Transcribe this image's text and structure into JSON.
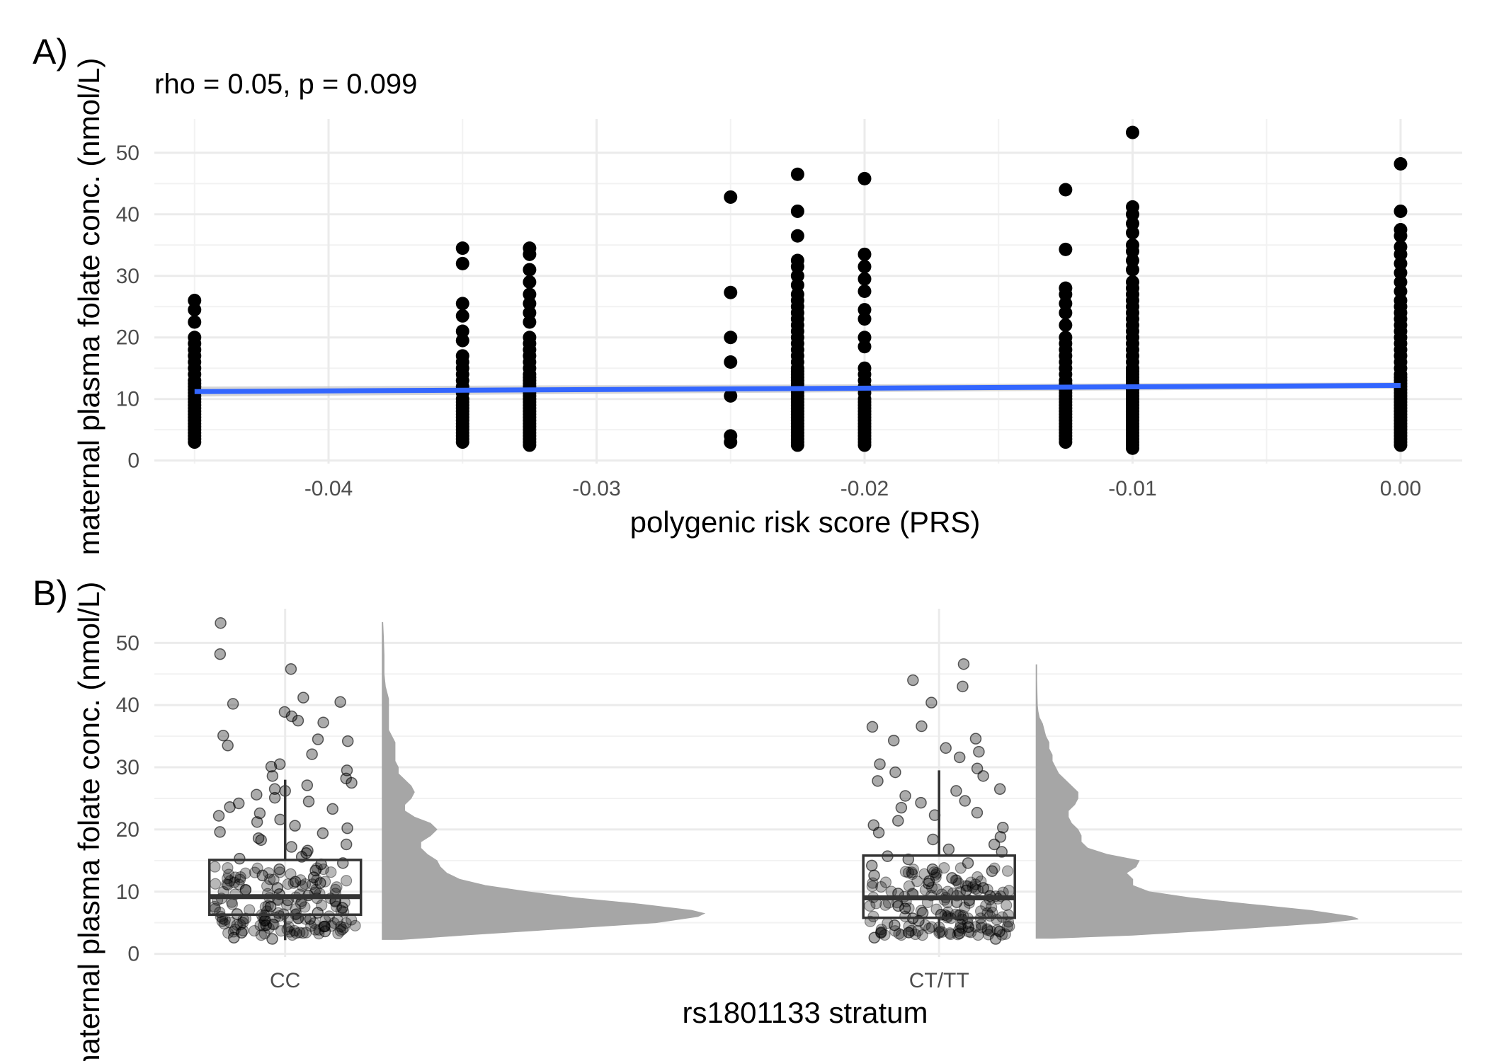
{
  "chart_data": [
    {
      "type": "scatter",
      "tag": "A)",
      "title": "",
      "subtitle": "rho = 0.05, p = 0.099",
      "xlabel": "polygenic risk score (PRS)",
      "ylabel": "maternal plasma folate conc. (nmol/L)",
      "xlim": [
        -0.0465,
        0.0023
      ],
      "ylim": [
        -0.5,
        55.5
      ],
      "x_ticks": [
        -0.04,
        -0.03,
        -0.02,
        -0.01,
        0.0
      ],
      "x_tick_labels": [
        "-0.04",
        "-0.03",
        "-0.02",
        "-0.01",
        "0.00"
      ],
      "y_ticks": [
        0,
        10,
        20,
        30,
        40,
        50
      ],
      "y_tick_labels": [
        "0",
        "10",
        "20",
        "30",
        "40",
        "50"
      ],
      "grid": true,
      "point_color": "#000000",
      "columns": [
        {
          "x": -0.045,
          "values": [
            3,
            3.5,
            4,
            4.5,
            5,
            5.5,
            6,
            6.5,
            7,
            7.5,
            8,
            8.5,
            9,
            9.5,
            10,
            10.5,
            11,
            11.5,
            12,
            12.5,
            13,
            14,
            15,
            16,
            17,
            18,
            19,
            20,
            22.5,
            24.5,
            26
          ]
        },
        {
          "x": -0.035,
          "values": [
            3,
            3.5,
            4,
            4.5,
            5,
            5.5,
            6,
            6.5,
            7,
            7.5,
            8,
            8.5,
            9,
            9.5,
            10,
            11,
            12,
            13,
            14,
            15,
            16,
            17,
            19.5,
            21,
            23.5,
            25.5,
            32,
            34.5
          ]
        },
        {
          "x": -0.0325,
          "values": [
            2.5,
            3,
            3.5,
            4,
            4.5,
            5,
            5.5,
            6,
            6.5,
            7,
            7.5,
            8,
            8.5,
            9,
            9.5,
            10,
            10.5,
            11,
            11.5,
            12,
            12.5,
            13,
            13.5,
            14,
            15,
            16,
            17,
            18,
            19,
            20,
            22.5,
            24,
            25.5,
            27,
            29,
            31,
            33.5,
            34.5
          ]
        },
        {
          "x": -0.025,
          "values": [
            3,
            4,
            10.5,
            16,
            20,
            27.3,
            42.8
          ]
        },
        {
          "x": -0.0225,
          "values": [
            2.5,
            3,
            3.5,
            4,
            4.5,
            5,
            5.5,
            6,
            6.5,
            7,
            7.5,
            8,
            8.5,
            9,
            9.5,
            10,
            10.5,
            11,
            11.5,
            12,
            12.5,
            13,
            13.5,
            14,
            14.5,
            15,
            16,
            17,
            18,
            19,
            20,
            21,
            22,
            23,
            24,
            25,
            26,
            27,
            28.5,
            30,
            31.5,
            32.5,
            36.5,
            40.5,
            46.5
          ]
        },
        {
          "x": -0.02,
          "values": [
            2.5,
            3,
            3.5,
            4,
            4.5,
            5,
            5.5,
            6,
            6.5,
            7,
            7.5,
            8,
            8.5,
            9,
            9.5,
            10,
            11,
            12,
            13,
            14,
            15,
            18.5,
            20,
            23,
            24.5,
            27.5,
            29.5,
            31.5,
            33.5,
            45.8
          ]
        },
        {
          "x": -0.0125,
          "values": [
            3,
            3.5,
            4,
            4.5,
            5,
            5.5,
            6,
            6.5,
            7,
            7.5,
            8,
            8.5,
            9,
            9.5,
            10,
            10.5,
            11,
            11.5,
            12,
            12.5,
            13,
            14,
            15,
            16,
            17,
            18,
            19,
            20,
            22,
            24,
            25.5,
            27,
            28,
            34.3,
            44
          ]
        },
        {
          "x": -0.01,
          "values": [
            2,
            2.5,
            3,
            3.5,
            4,
            4.5,
            5,
            5.5,
            6,
            6.5,
            7,
            7.5,
            8,
            8.5,
            9,
            9.5,
            10,
            10.5,
            11,
            11.5,
            12,
            12.5,
            13,
            13.5,
            14,
            14.5,
            15,
            16,
            17,
            18,
            19,
            20,
            21,
            22,
            23,
            24,
            25,
            26,
            27,
            28,
            29,
            31,
            32.5,
            34,
            35,
            37,
            38.5,
            40,
            41.2,
            53.3
          ]
        },
        {
          "x": 0.0,
          "values": [
            2.5,
            3,
            3.5,
            4,
            4.5,
            5,
            5.5,
            6,
            6.5,
            7,
            7.5,
            8,
            8.5,
            9,
            9.5,
            10,
            10.5,
            11,
            11.5,
            12,
            12.5,
            13,
            13.5,
            14,
            15,
            16,
            17,
            18,
            19,
            20,
            21,
            22,
            23,
            24,
            25,
            26,
            27.5,
            29,
            30.5,
            32,
            33.5,
            34.7,
            36.5,
            37.5,
            40.5,
            48.2
          ]
        }
      ],
      "fit_line": {
        "color": "#3366FF",
        "band_color": "#c8c8c8",
        "x": [
          -0.045,
          0.0
        ],
        "y": [
          11.2,
          12.2
        ],
        "y_lower": [
          10.4,
          11.7
        ],
        "y_upper": [
          12.0,
          12.7
        ]
      }
    },
    {
      "type": "raincloud",
      "tag": "B)",
      "title": "",
      "xlabel": "rs1801133 stratum",
      "ylabel": "maternal plasma folate conc. (nmol/L)",
      "categories": [
        "CC",
        "CT/TT"
      ],
      "ylim": [
        -0.5,
        55.5
      ],
      "y_ticks": [
        0,
        10,
        20,
        30,
        40,
        50
      ],
      "y_tick_labels": [
        "0",
        "10",
        "20",
        "30",
        "40",
        "50"
      ],
      "grid": true,
      "density_color": "#a6a6a6",
      "box": [
        {
          "category": "CC",
          "whisker_low": 2.2,
          "q1": 6.3,
          "median": 9.2,
          "q3": 15.1,
          "whisker_high": 28.0
        },
        {
          "category": "CT/TT",
          "whisker_low": 2.4,
          "q1": 5.8,
          "median": 9.0,
          "q3": 15.8,
          "whisker_high": 29.5
        }
      ],
      "density": [
        {
          "category": "CC",
          "y": [
            2.3,
            3,
            4,
            5,
            6,
            6.5,
            7,
            8,
            9,
            10,
            11,
            12,
            13,
            14,
            15,
            16,
            17,
            18,
            19,
            20,
            21,
            22,
            23,
            24,
            25,
            26,
            27,
            28,
            29,
            30,
            31,
            32,
            33,
            34,
            35,
            36,
            37,
            38,
            39,
            40,
            41,
            42,
            43,
            45,
            48,
            51,
            53.3
          ],
          "width": [
            0.06,
            0.25,
            0.55,
            0.85,
            0.98,
            1.0,
            0.96,
            0.8,
            0.6,
            0.45,
            0.32,
            0.24,
            0.2,
            0.18,
            0.17,
            0.14,
            0.12,
            0.12,
            0.15,
            0.17,
            0.15,
            0.1,
            0.07,
            0.07,
            0.09,
            0.1,
            0.09,
            0.07,
            0.05,
            0.05,
            0.04,
            0.04,
            0.04,
            0.04,
            0.03,
            0.02,
            0.02,
            0.02,
            0.02,
            0.02,
            0.02,
            0.015,
            0.01,
            0.006,
            0.006,
            0.004,
            0.002
          ]
        },
        {
          "category": "CT/TT",
          "y": [
            2.5,
            3,
            4,
            5,
            5.6,
            6,
            7,
            8,
            9,
            10,
            11,
            12,
            13,
            14,
            15,
            16,
            17,
            18,
            19,
            20,
            21,
            22,
            23,
            24,
            25,
            26,
            27,
            28,
            29,
            30,
            31,
            32,
            33,
            34,
            35,
            36,
            37,
            38,
            39,
            40,
            42,
            44,
            46.5
          ],
          "width": [
            0.05,
            0.3,
            0.62,
            0.9,
            1.0,
            0.98,
            0.85,
            0.66,
            0.48,
            0.35,
            0.3,
            0.3,
            0.28,
            0.31,
            0.32,
            0.22,
            0.16,
            0.14,
            0.14,
            0.13,
            0.11,
            0.1,
            0.1,
            0.12,
            0.13,
            0.13,
            0.11,
            0.09,
            0.07,
            0.06,
            0.05,
            0.05,
            0.04,
            0.04,
            0.03,
            0.025,
            0.02,
            0.01,
            0.006,
            0.004,
            0.003,
            0.002,
            0.002
          ]
        }
      ],
      "point_color": "#000000",
      "point_opacity": 0.33,
      "jitter_points": [
        {
          "category": "CC",
          "values": [
            53.2,
            48.2,
            45.8,
            41.2,
            40.5,
            40.2,
            38.9,
            38.2,
            37.5,
            37.2,
            35.1,
            34.5,
            34.2,
            33.5,
            32.1,
            30.5,
            30.1,
            29.5,
            28.6,
            28.2,
            27.5,
            27.1,
            26.5,
            26.2,
            25.6,
            25.1,
            24.5,
            24.2,
            23.6,
            23.3,
            22.6,
            22.2,
            21.6,
            21.2,
            20.6,
            20.2,
            19.6,
            19.4,
            18.6,
            18.3,
            17.6,
            17.2,
            16.6,
            16.2,
            15.6,
            15.3,
            14.6,
            14.4,
            13.6,
            13.4,
            12.6,
            12.3,
            11.6,
            11.4,
            10.6,
            10.3,
            9.6,
            9.4,
            8.6,
            8.4,
            7.6,
            7.4,
            6.6,
            6.4,
            5.6,
            5.4,
            4.6,
            4.4,
            3.6,
            3.4,
            2.6,
            2.4
          ]
        },
        {
          "category": "CT/TT",
          "values": [
            46.6,
            44,
            43,
            40.4,
            36.6,
            36.5,
            34.6,
            34.3,
            33.1,
            32.5,
            31.6,
            30.5,
            29.8,
            29.2,
            28.6,
            27.8,
            26.5,
            26.2,
            25.4,
            24.6,
            24.3,
            23.5,
            22.7,
            22.3,
            21.4,
            20.7,
            20.3,
            19.5,
            18.8,
            18.4,
            17.6,
            16.8,
            16.4,
            15.7,
            15.2,
            14.6,
            14.2,
            13.6,
            13.3,
            12.6,
            12.2,
            11.7,
            11.3,
            10.6,
            10.2,
            9.7,
            9.3,
            8.6,
            8.3,
            7.7,
            7.3,
            6.6,
            6.3,
            5.7,
            5.3,
            4.6,
            4.3,
            3.6,
            3.3,
            2.6,
            2.4
          ]
        }
      ]
    }
  ]
}
